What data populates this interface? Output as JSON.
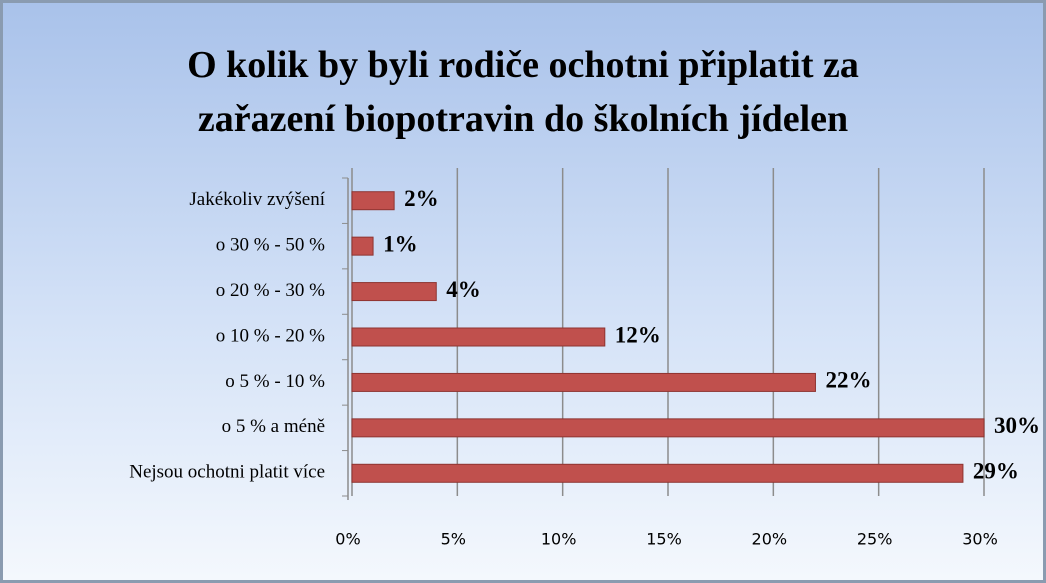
{
  "chart_data": {
    "type": "bar",
    "orientation": "horizontal",
    "title": "O kolik by byli rodiče ochotni připlatit za zařazení biopotravin do školních jídelen",
    "categories": [
      "Jakékoliv zvýšení",
      "o 30 % - 50 %",
      "o 20 % - 30 %",
      "o 10 % - 20 %",
      "o 5 % - 10 %",
      "o 5 % a méně",
      "Nejsou ochotni platit více"
    ],
    "values": [
      2,
      1,
      4,
      12,
      22,
      30,
      29
    ],
    "value_labels": [
      "2%",
      "1%",
      "4%",
      "12%",
      "22%",
      "30%",
      "29%"
    ],
    "color": "#c0504d",
    "xlim": [
      0,
      30
    ],
    "xticks": [
      {
        "value": 0,
        "label": "0%"
      },
      {
        "value": 5,
        "label": "5%"
      },
      {
        "value": 10,
        "label": "10%"
      },
      {
        "value": 15,
        "label": "15%"
      },
      {
        "value": 20,
        "label": "20%"
      },
      {
        "value": 25,
        "label": "25%"
      },
      {
        "value": 30,
        "label": "30%"
      }
    ],
    "grid": true
  }
}
